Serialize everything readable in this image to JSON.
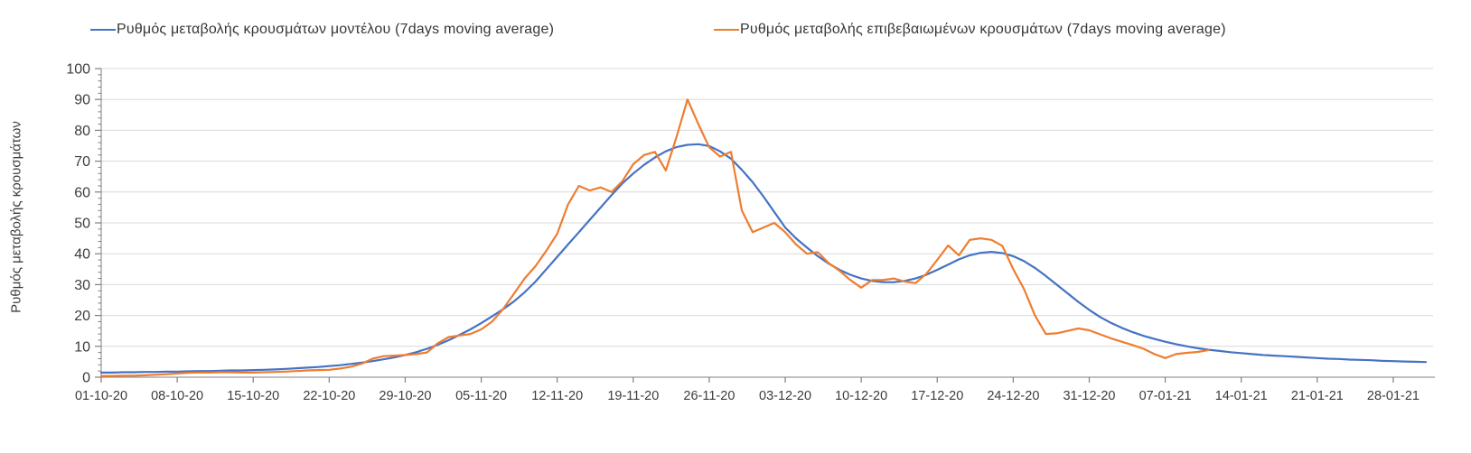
{
  "chart_data": {
    "type": "line",
    "title": "",
    "ylabel": "Ρυθμός μεταβολής κρουσμάτων",
    "xlabel": "",
    "ylim": [
      0,
      100
    ],
    "ytick_step": 10,
    "y_minor_tick_step": 2,
    "y_tick_labels": [
      "0",
      "10",
      "20",
      "30",
      "40",
      "50",
      "60",
      "70",
      "80",
      "90",
      "100"
    ],
    "grid": "horizontal-only",
    "legend_position": "top",
    "x_tick_every_days": 7,
    "total_days": 122,
    "x_tick_labels": [
      "01-10-20",
      "08-10-20",
      "15-10-20",
      "22-10-20",
      "29-10-20",
      "05-11-20",
      "12-11-20",
      "19-11-20",
      "26-11-20",
      "03-12-20",
      "10-12-20",
      "17-12-20",
      "24-12-20",
      "31-12-20",
      "07-01-21",
      "14-01-21",
      "21-01-21",
      "28-01-21"
    ],
    "series": [
      {
        "name": "Ρυθμός μεταβολής κρουσμάτων μοντέλου (7days moving average)",
        "color": "#4472C4",
        "start_day_index": 0,
        "start_date": "01-10-20",
        "end_date": "31-01-21",
        "values": [
          1.5,
          1.5,
          1.6,
          1.6,
          1.7,
          1.7,
          1.8,
          1.8,
          1.9,
          2.0,
          2.0,
          2.1,
          2.2,
          2.2,
          2.3,
          2.4,
          2.5,
          2.7,
          2.9,
          3.1,
          3.3,
          3.6,
          3.9,
          4.3,
          4.7,
          5.2,
          5.8,
          6.4,
          7.2,
          8.1,
          9.2,
          10.5,
          12.0,
          13.7,
          15.5,
          17.5,
          19.7,
          22.0,
          24.5,
          27.5,
          31.0,
          35.0,
          39.0,
          43.0,
          47.0,
          51.0,
          55.0,
          59.0,
          62.8,
          66.0,
          68.8,
          71.2,
          73.2,
          74.6,
          75.3,
          75.5,
          74.9,
          73.2,
          70.8,
          67.2,
          63.2,
          58.5,
          53.5,
          48.5,
          45.0,
          42.0,
          39.2,
          36.8,
          34.8,
          33.2,
          32.0,
          31.2,
          30.8,
          30.8,
          31.2,
          32.0,
          33.2,
          34.8,
          36.5,
          38.2,
          39.5,
          40.3,
          40.6,
          40.2,
          39.2,
          37.6,
          35.4,
          32.8,
          30.0,
          27.2,
          24.4,
          21.8,
          19.5,
          17.6,
          16.0,
          14.6,
          13.4,
          12.4,
          11.5,
          10.7,
          10.0,
          9.4,
          8.9,
          8.5,
          8.1,
          7.8,
          7.5,
          7.2,
          7.0,
          6.8,
          6.6,
          6.4,
          6.2,
          6.0,
          5.9,
          5.7,
          5.6,
          5.5,
          5.3,
          5.2,
          5.1,
          5.0,
          4.9
        ]
      },
      {
        "name": "Ρυθμός μεταβολής επιβεβαιωμένων κρουσμάτων (7days moving average)",
        "color": "#ED7D31",
        "start_day_index": 0,
        "start_date": "01-10-20",
        "end_date": "11-01-21",
        "values": [
          0.4,
          0.4,
          0.5,
          0.5,
          0.6,
          0.8,
          1.0,
          1.2,
          1.4,
          1.5,
          1.5,
          1.6,
          1.6,
          1.5,
          1.5,
          1.6,
          1.7,
          1.8,
          2.0,
          2.2,
          2.3,
          2.4,
          2.8,
          3.4,
          4.4,
          6.0,
          6.8,
          7.0,
          7.2,
          7.5,
          8.0,
          11.0,
          13.0,
          13.5,
          14.0,
          15.5,
          18.0,
          22.0,
          27.0,
          32.0,
          36.0,
          41.0,
          46.5,
          56.0,
          62.0,
          60.5,
          61.5,
          60.0,
          63.5,
          69.0,
          72.0,
          73.0,
          67.0,
          78.0,
          90.0,
          82.0,
          74.5,
          71.5,
          73.0,
          54.0,
          47.0,
          48.5,
          50.0,
          47.0,
          43.0,
          40.0,
          40.5,
          37.0,
          34.5,
          31.5,
          29.0,
          31.5,
          31.5,
          32.0,
          31.0,
          30.5,
          33.5,
          38.0,
          42.7,
          39.5,
          44.5,
          45.0,
          44.5,
          42.5,
          35.0,
          28.5,
          20.0,
          14.0,
          14.2,
          15.0,
          15.8,
          15.2,
          13.9,
          12.6,
          11.5,
          10.4,
          9.2,
          7.5,
          6.2,
          7.5,
          7.9,
          8.2,
          8.8
        ]
      }
    ]
  }
}
